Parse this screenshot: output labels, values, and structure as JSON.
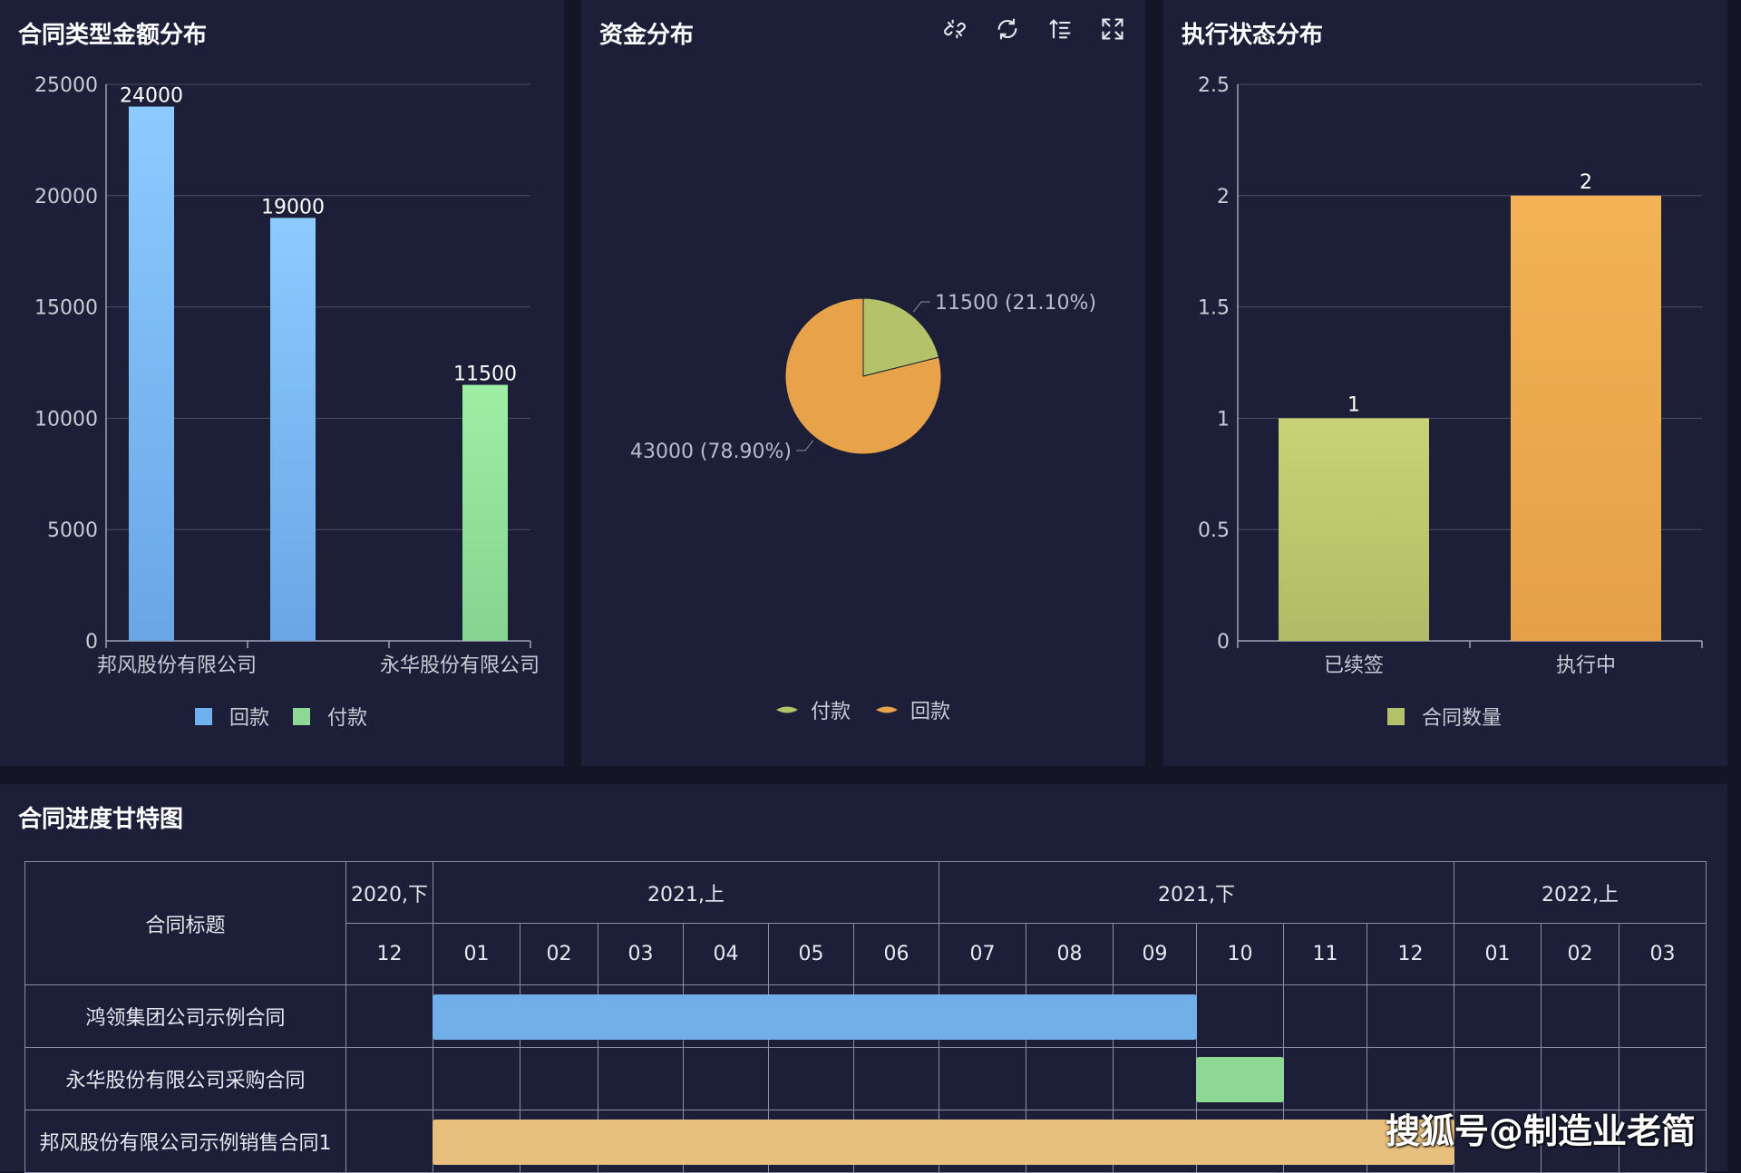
{
  "panels": {
    "contract_type": {
      "title": "合同类型金额分布",
      "legend": [
        {
          "label": "回款",
          "color": "#6fb0ee"
        },
        {
          "label": "付款",
          "color": "#8ed896"
        }
      ]
    },
    "fund": {
      "title": "资金分布",
      "toolbar": [
        "link-icon",
        "refresh-icon",
        "sort-icon",
        "fullscreen-icon"
      ],
      "legend": [
        {
          "label": "付款",
          "color": "#b4c26a"
        },
        {
          "label": "回款",
          "color": "#e8a24a"
        }
      ]
    },
    "status": {
      "title": "执行状态分布",
      "legend": [
        {
          "label": "合同数量",
          "color": "#b4c26a"
        }
      ]
    },
    "gantt": {
      "title": "合同进度甘特图",
      "header_label": "合同标题",
      "periods": [
        {
          "label": "2020,下",
          "span": 1
        },
        {
          "label": "2021,上",
          "span": 6
        },
        {
          "label": "2021,下",
          "span": 6
        },
        {
          "label": "2022,上",
          "span": 3
        }
      ],
      "months": [
        "12",
        "01",
        "02",
        "03",
        "04",
        "05",
        "06",
        "07",
        "08",
        "09",
        "10",
        "11",
        "12",
        "01",
        "02",
        "03"
      ],
      "tasks": [
        {
          "name": "鸿领集团公司示例合同",
          "start": 1,
          "end": 10,
          "color": "#72aee8"
        },
        {
          "name": "永华股份有限公司采购合同",
          "start": 10,
          "end": 11,
          "color": "#8ed896"
        },
        {
          "name": "邦风股份有限公司示例销售合同1",
          "start": 1,
          "end": 13,
          "color": "#e7c07e"
        }
      ]
    }
  },
  "watermark": "搜狐号@制造业老简",
  "chart_data": [
    {
      "type": "bar",
      "categories": [
        "邦风股份有限公司",
        "",
        "永华股份有限公司"
      ],
      "series": [
        {
          "name": "回款",
          "values": [
            24000,
            19000,
            null
          ]
        },
        {
          "name": "付款",
          "values": [
            null,
            null,
            11500
          ]
        }
      ],
      "data_labels": [
        "24000",
        "19000",
        "11500"
      ],
      "ylim": [
        0,
        25000
      ],
      "yticks": [
        "0",
        "5000",
        "10000",
        "15000",
        "20000",
        "25000"
      ],
      "grid": true,
      "legend_position": "bottom"
    },
    {
      "type": "pie",
      "slices": [
        {
          "name": "付款",
          "value": 11500,
          "percent": 21.1,
          "label": "11500 (21.10%)",
          "color": "#b4c26a"
        },
        {
          "name": "回款",
          "value": 43000,
          "percent": 78.9,
          "label": "43000 (78.90%)",
          "color": "#e8a24a"
        }
      ],
      "legend_position": "bottom"
    },
    {
      "type": "bar",
      "categories": [
        "已续签",
        "执行中"
      ],
      "series": [
        {
          "name": "合同数量",
          "values": [
            1,
            2
          ]
        }
      ],
      "data_labels": [
        "1",
        "2"
      ],
      "ylim": [
        0,
        2.5
      ],
      "yticks": [
        "0",
        "0.5",
        "1",
        "1.5",
        "2",
        "2.5"
      ],
      "grid": true,
      "legend_position": "bottom"
    }
  ]
}
